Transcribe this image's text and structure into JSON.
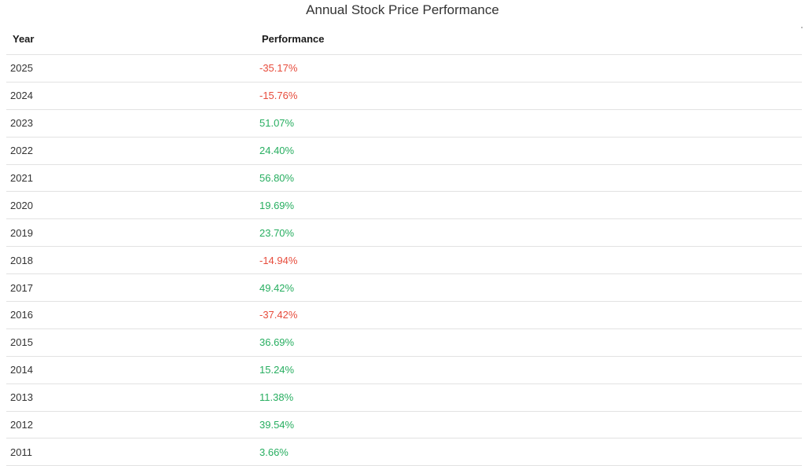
{
  "title": "Annual Stock Price Performance",
  "table": {
    "headers": {
      "year": "Year",
      "performance": "Performance"
    },
    "rows": [
      {
        "year": "2025",
        "performance": "-35.17%",
        "direction": "negative"
      },
      {
        "year": "2024",
        "performance": "-15.76%",
        "direction": "negative"
      },
      {
        "year": "2023",
        "performance": "51.07%",
        "direction": "positive"
      },
      {
        "year": "2022",
        "performance": "24.40%",
        "direction": "positive"
      },
      {
        "year": "2021",
        "performance": "56.80%",
        "direction": "positive"
      },
      {
        "year": "2020",
        "performance": "19.69%",
        "direction": "positive"
      },
      {
        "year": "2019",
        "performance": "23.70%",
        "direction": "positive"
      },
      {
        "year": "2018",
        "performance": "-14.94%",
        "direction": "negative"
      },
      {
        "year": "2017",
        "performance": "49.42%",
        "direction": "positive"
      },
      {
        "year": "2016",
        "performance": "-37.42%",
        "direction": "negative"
      },
      {
        "year": "2015",
        "performance": "36.69%",
        "direction": "positive"
      },
      {
        "year": "2014",
        "performance": "15.24%",
        "direction": "positive"
      },
      {
        "year": "2013",
        "performance": "11.38%",
        "direction": "positive"
      },
      {
        "year": "2012",
        "performance": "39.54%",
        "direction": "positive"
      },
      {
        "year": "2011",
        "performance": "3.66%",
        "direction": "positive"
      }
    ]
  },
  "colors": {
    "positive": "#27ae60",
    "negative": "#e74c3c",
    "divider": "#e2e2e2"
  }
}
